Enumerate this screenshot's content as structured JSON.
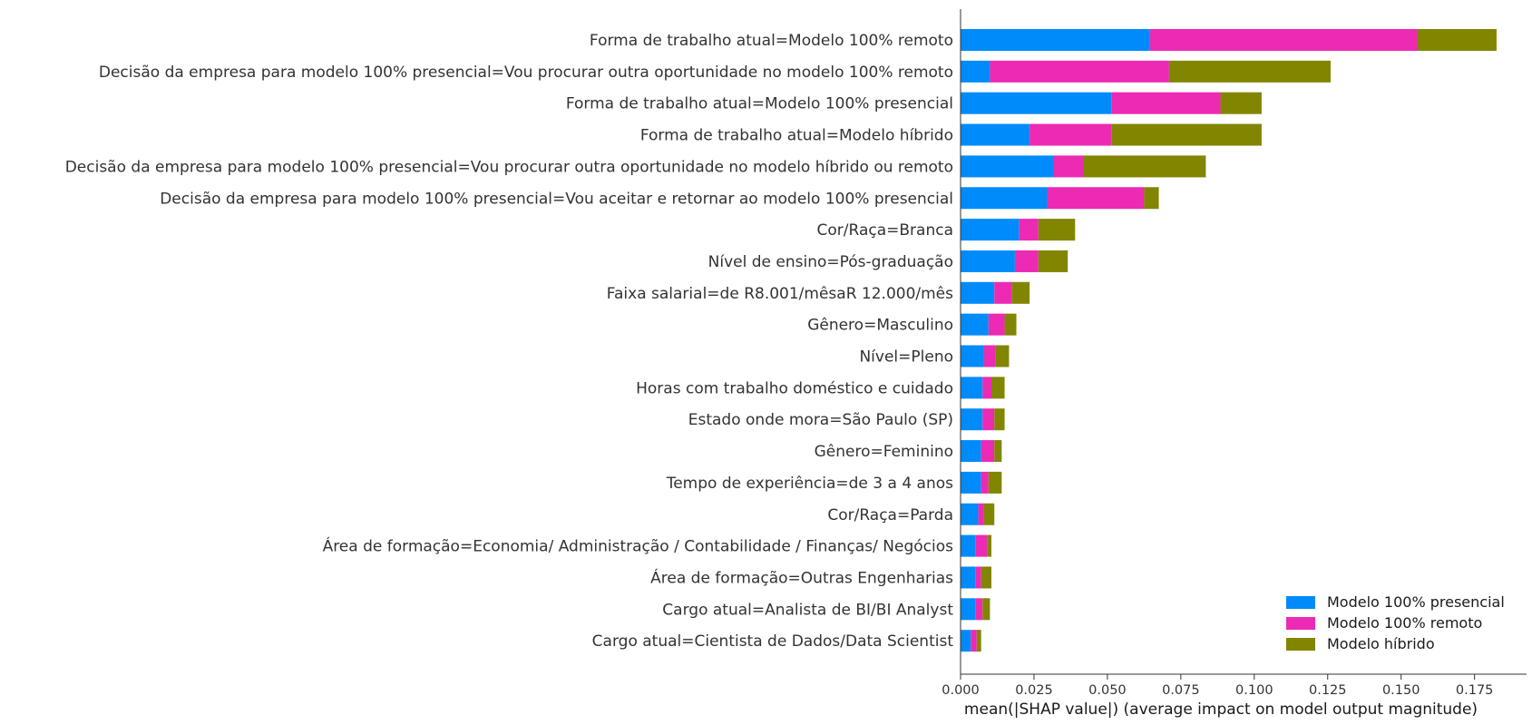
{
  "chart_data": {
    "type": "bar",
    "orientation": "horizontal",
    "stacked": true,
    "xlabel": "mean(|SHAP value|) (average impact on model output magnitude)",
    "xlim": [
      0,
      0.19
    ],
    "xticks": [
      "0.000",
      "0.025",
      "0.050",
      "0.075",
      "0.100",
      "0.125",
      "0.150",
      "0.175"
    ],
    "legend_position": "bottom-right",
    "grid": false,
    "categories": [
      "Forma de trabalho atual=Modelo 100% remoto",
      "Decisão da empresa para modelo 100% presencial=Vou procurar outra oportunidade no modelo 100% remoto",
      "Forma de trabalho atual=Modelo 100% presencial",
      "Forma de trabalho atual=Modelo híbrido",
      "Decisão da empresa para modelo 100% presencial=Vou procurar outra oportunidade no modelo híbrido ou remoto",
      "Decisão da empresa para modelo 100% presencial=Vou aceitar e retornar ao modelo 100% presencial",
      "Cor/Raça=Branca",
      "Nível de ensino=Pós-graduação",
      "Faixa salarial=de R8.001/mêsaR 12.000/mês",
      "Gênero=Masculino",
      "Nível=Pleno",
      "Horas com trabalho doméstico e cuidado",
      "Estado onde mora=São Paulo (SP)",
      "Gênero=Feminino",
      "Tempo de experiência=de 3 a 4 anos",
      "Cor/Raça=Parda",
      "Área de formação=Economia/ Administração / Contabilidade / Finanças/ Negócios",
      "Área de formação=Outras Engenharias",
      "Cargo atual=Analista de BI/BI Analyst",
      "Cargo atual=Cientista de Dados/Data Scientist"
    ],
    "series": [
      {
        "name": "Modelo 100% presencial",
        "color": "#008bfb",
        "values": [
          0.0645,
          0.01,
          0.0515,
          0.0235,
          0.0315,
          0.0295,
          0.02,
          0.0185,
          0.0115,
          0.0095,
          0.008,
          0.0075,
          0.0075,
          0.007,
          0.007,
          0.006,
          0.005,
          0.005,
          0.005,
          0.0035
        ]
      },
      {
        "name": "Modelo 100% remoto",
        "color": "#ec2ab3",
        "values": [
          0.091,
          0.061,
          0.037,
          0.028,
          0.0105,
          0.033,
          0.0065,
          0.008,
          0.006,
          0.0055,
          0.004,
          0.003,
          0.004,
          0.0045,
          0.0025,
          0.002,
          0.004,
          0.002,
          0.0025,
          0.002
        ]
      },
      {
        "name": "Modelo híbrido",
        "color": "#828500",
        "values": [
          0.027,
          0.055,
          0.014,
          0.051,
          0.0415,
          0.005,
          0.0125,
          0.01,
          0.006,
          0.004,
          0.0045,
          0.0045,
          0.0035,
          0.0025,
          0.0045,
          0.0035,
          0.0015,
          0.0035,
          0.0025,
          0.0015
        ]
      }
    ]
  }
}
